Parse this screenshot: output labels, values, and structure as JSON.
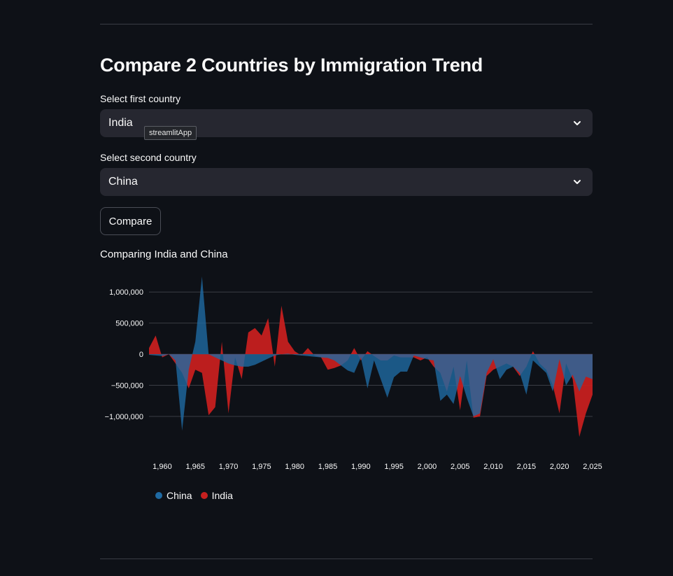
{
  "page": {
    "title": "Compare 2 Countries by Immigration Trend",
    "first_label": "Select first country",
    "first_value": "India",
    "second_label": "Select second country",
    "second_value": "China",
    "tooltip": "streamlitApp",
    "button_label": "Compare",
    "subtitle": "Comparing India and China"
  },
  "colors": {
    "china": "#1f6aa3",
    "india": "#c6201f",
    "background": "#0e1117"
  },
  "chart_data": {
    "type": "area",
    "title": "",
    "xlabel": "",
    "ylabel": "",
    "xlim": [
      1958,
      2025
    ],
    "ylim": [
      -1450000,
      1250000
    ],
    "x_ticks": [
      1960,
      1965,
      1970,
      1975,
      1980,
      1985,
      1990,
      1995,
      2000,
      2005,
      2010,
      2015,
      2020,
      2025
    ],
    "x_tick_labels": [
      "1,960",
      "1,965",
      "1,970",
      "1,975",
      "1,980",
      "1,985",
      "1,990",
      "1,995",
      "2,000",
      "2,005",
      "2,010",
      "2,015",
      "2,020",
      "2,025"
    ],
    "y_ticks": [
      1000000,
      500000,
      0,
      -500000,
      -1000000
    ],
    "y_tick_labels": [
      "1,000,000",
      "500,000",
      "0",
      "−500,000",
      "−1,000,000"
    ],
    "grid": true,
    "legend": "bottom-left",
    "x": [
      1958,
      1959,
      1960,
      1961,
      1962,
      1963,
      1964,
      1965,
      1966,
      1967,
      1968,
      1969,
      1970,
      1971,
      1972,
      1973,
      1974,
      1975,
      1976,
      1977,
      1978,
      1979,
      1980,
      1981,
      1982,
      1983,
      1984,
      1985,
      1986,
      1987,
      1988,
      1989,
      1990,
      1991,
      1992,
      1993,
      1994,
      1995,
      1996,
      1997,
      1998,
      1999,
      2000,
      2001,
      2002,
      2003,
      2004,
      2005,
      2006,
      2007,
      2008,
      2009,
      2010,
      2011,
      2012,
      2013,
      2014,
      2015,
      2016,
      2017,
      2018,
      2019,
      2020,
      2021,
      2022,
      2023,
      2024,
      2025
    ],
    "series": [
      {
        "name": "China",
        "values": [
          -10000,
          -20000,
          -30000,
          0,
          -100000,
          -1230000,
          -250000,
          200000,
          1250000,
          0,
          -50000,
          -100000,
          -150000,
          -180000,
          -200000,
          -200000,
          -170000,
          -120000,
          -70000,
          -20000,
          0,
          10000,
          -10000,
          -20000,
          -30000,
          -40000,
          -50000,
          -60000,
          -100000,
          -180000,
          -260000,
          -300000,
          -50000,
          -550000,
          -100000,
          -400000,
          -700000,
          -370000,
          -280000,
          -280000,
          -20000,
          -50000,
          -80000,
          -100000,
          -750000,
          -650000,
          -800000,
          -350000,
          -700000,
          -1000000,
          -950000,
          -300000,
          -80000,
          -400000,
          -250000,
          -200000,
          -300000,
          -650000,
          -100000,
          -200000,
          -300000,
          -600000,
          -80000,
          -500000,
          -330000,
          -600000,
          -360000,
          -400000
        ]
      },
      {
        "name": "India",
        "values": [
          100000,
          300000,
          -50000,
          0,
          -150000,
          -300000,
          -550000,
          -250000,
          -300000,
          -980000,
          -850000,
          200000,
          -950000,
          -50000,
          -400000,
          350000,
          420000,
          300000,
          580000,
          -200000,
          780000,
          200000,
          50000,
          -20000,
          100000,
          -20000,
          -50000,
          -250000,
          -220000,
          -180000,
          -100000,
          100000,
          -100000,
          50000,
          -30000,
          -100000,
          -100000,
          -20000,
          -50000,
          -50000,
          -50000,
          -100000,
          -50000,
          -200000,
          -300000,
          -600000,
          -200000,
          -900000,
          -100000,
          -1020000,
          -1000000,
          -350000,
          -250000,
          -200000,
          -150000,
          -200000,
          -350000,
          -200000,
          50000,
          -150000,
          -250000,
          -500000,
          -950000,
          -150000,
          -400000,
          -1330000,
          -950000,
          -650000
        ]
      }
    ]
  }
}
